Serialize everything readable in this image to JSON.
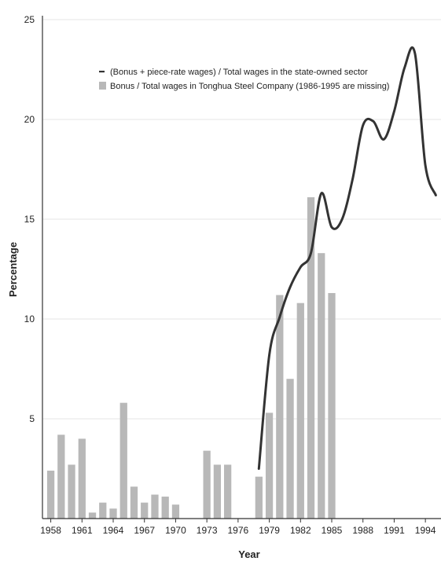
{
  "chart_data": {
    "type": "bar",
    "xlabel": "Year",
    "ylabel": "Percentage",
    "xlim": [
      1957.2,
      1995.5
    ],
    "ylim": [
      0,
      25
    ],
    "yticks": [
      5,
      10,
      15,
      20,
      25
    ],
    "xticks": [
      1958,
      1961,
      1964,
      1967,
      1970,
      1973,
      1976,
      1979,
      1982,
      1985,
      1988,
      1991,
      1994
    ],
    "grid": true,
    "legend_position": "top",
    "colors": {
      "line": "#333333",
      "bar": "#b8b8b8",
      "grid": "#e6e6e6"
    },
    "series": [
      {
        "name": "Bonus / Total wages in Tonghua Steel Company (1986-1995 are missing)",
        "kind": "bar",
        "x": [
          1958,
          1959,
          1960,
          1961,
          1962,
          1963,
          1964,
          1965,
          1966,
          1967,
          1968,
          1969,
          1970,
          1973,
          1974,
          1975,
          1978,
          1979,
          1980,
          1981,
          1982,
          1983,
          1984,
          1985
        ],
        "values": [
          2.4,
          4.2,
          2.7,
          4.0,
          0.3,
          0.8,
          0.5,
          5.8,
          1.6,
          0.8,
          1.2,
          1.1,
          0.7,
          3.4,
          2.7,
          2.7,
          2.1,
          5.3,
          11.2,
          7.0,
          10.8,
          16.1,
          13.3,
          11.3
        ]
      },
      {
        "name": "(Bonus + piece-rate wages) / Total wages in the state-owned sector",
        "kind": "line",
        "x": [
          1978,
          1979,
          1980,
          1981,
          1982,
          1983,
          1984,
          1985,
          1986,
          1987,
          1988,
          1989,
          1990,
          1991,
          1992,
          1993,
          1994,
          1995
        ],
        "values": [
          2.5,
          8.2,
          10.1,
          11.6,
          12.6,
          13.3,
          16.3,
          14.6,
          15.0,
          17.0,
          19.7,
          19.9,
          19.0,
          20.4,
          22.6,
          23.3,
          17.7,
          16.2
        ]
      }
    ]
  }
}
